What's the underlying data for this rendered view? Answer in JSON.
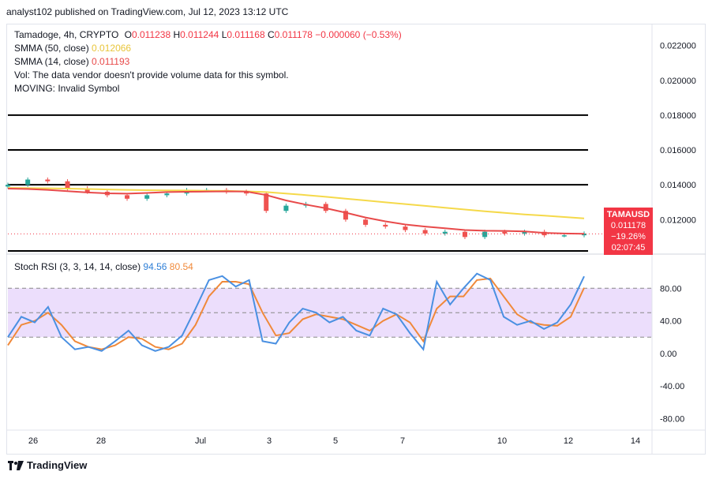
{
  "header": {
    "publisher_line": "analyst102 published on TradingView.com, Jul 12, 2023 13:12 UTC"
  },
  "legend": {
    "symbol_line": {
      "name": "Tamadoge, 4h, CRYPTO",
      "open_label": "O",
      "open": "0.011238",
      "high_label": "H",
      "high": "0.011244",
      "low_label": "L",
      "low": "0.011168",
      "close_label": "C",
      "close": "0.011178",
      "change": "−0.000060 (−0.53%)"
    },
    "sma50": {
      "label": "SMMA (50, close)",
      "value": "0.012066",
      "color": "#f5d94a"
    },
    "sma14": {
      "label": "SMMA (14, close)",
      "value": "0.011193",
      "color": "#e84a4a"
    },
    "vol_line": "Vol: The data vendor doesn't provide volume data for this symbol.",
    "moving_line": "MOVING: Invalid Symbol"
  },
  "price_tag": {
    "symbol": "TAMAUSD",
    "price": "0.011178",
    "change_pct": "−19.26%",
    "countdown": "02:07:45"
  },
  "stoch": {
    "label": "Stoch RSI (3, 3, 14, 14, close)",
    "k_value": "94.56",
    "d_value": "80.54",
    "k_color": "#4a90e2",
    "d_color": "#f0893a",
    "band_color": "#e7d6fb"
  },
  "colors": {
    "up": "#26a69a",
    "down": "#ef5350",
    "sr_line": "#000000"
  },
  "branding": {
    "logo_text": "TradingView"
  },
  "chart_data": [
    {
      "type": "candlestick",
      "y_ticks": [
        "0.022000",
        "0.020000",
        "0.018000",
        "0.016000",
        "0.014000",
        "0.012000"
      ],
      "ylim": [
        0.0102,
        0.0228
      ],
      "x_ticks": [
        "26",
        "28",
        "Jul",
        "3",
        "5",
        "7",
        "10",
        "12",
        "14"
      ],
      "horizontal_levels": [
        0.018,
        0.016,
        0.014,
        0.0102
      ],
      "series": [
        {
          "name": "SMMA (50, close)",
          "values": [
            0.01382,
            0.01381,
            0.0138,
            0.01378,
            0.01376,
            0.01373,
            0.01371,
            0.01369,
            0.01368,
            0.01367,
            0.01366,
            0.01365,
            0.01362,
            0.01358,
            0.0135,
            0.01341,
            0.01331,
            0.0132,
            0.0131,
            0.01299,
            0.01289,
            0.01279,
            0.01268,
            0.01258,
            0.01248,
            0.01239,
            0.0123,
            0.01223,
            0.01215,
            0.01207
          ]
        },
        {
          "name": "SMMA (14, close)",
          "values": [
            0.01378,
            0.01376,
            0.01371,
            0.01363,
            0.01356,
            0.01351,
            0.01349,
            0.01353,
            0.01358,
            0.0136,
            0.01361,
            0.01362,
            0.01361,
            0.01341,
            0.0131,
            0.01286,
            0.01265,
            0.0124,
            0.01212,
            0.0119,
            0.01172,
            0.0116,
            0.0115,
            0.0114,
            0.01136,
            0.01135,
            0.01132,
            0.01124,
            0.0112,
            0.01119
          ]
        }
      ],
      "ohlc_closes": [
        0.014,
        0.0143,
        0.0142,
        0.0138,
        0.0136,
        0.0134,
        0.0132,
        0.0134,
        0.0135,
        0.0137,
        0.0137,
        0.0136,
        0.0135,
        0.0125,
        0.0128,
        0.0129,
        0.0125,
        0.012,
        0.0117,
        0.0116,
        0.0114,
        0.0112,
        0.0113,
        0.011,
        0.0113,
        0.0112,
        0.0113,
        0.0111,
        0.0111,
        0.0112
      ]
    },
    {
      "type": "line",
      "y_ticks": [
        "80.00",
        "40.00",
        "0.00",
        "-40.00",
        "-80.00"
      ],
      "ylim": [
        -94,
        118
      ],
      "band": [
        20,
        80
      ],
      "series": [
        {
          "name": "K",
          "values": [
            20,
            45,
            38,
            57,
            20,
            5,
            8,
            3,
            15,
            28,
            10,
            3,
            8,
            22,
            55,
            90,
            95,
            82,
            90,
            15,
            12,
            38,
            55,
            50,
            38,
            45,
            28,
            22,
            55,
            48,
            25,
            5,
            88,
            60,
            80,
            98,
            90,
            45,
            35,
            40,
            30,
            38,
            60,
            94.56
          ]
        },
        {
          "name": "D",
          "values": [
            10,
            35,
            40,
            50,
            35,
            15,
            8,
            5,
            10,
            20,
            18,
            8,
            5,
            12,
            35,
            70,
            88,
            88,
            85,
            50,
            22,
            25,
            42,
            48,
            45,
            42,
            35,
            28,
            40,
            48,
            38,
            15,
            55,
            70,
            70,
            90,
            92,
            70,
            48,
            38,
            35,
            34,
            45,
            80.54
          ]
        }
      ]
    }
  ]
}
